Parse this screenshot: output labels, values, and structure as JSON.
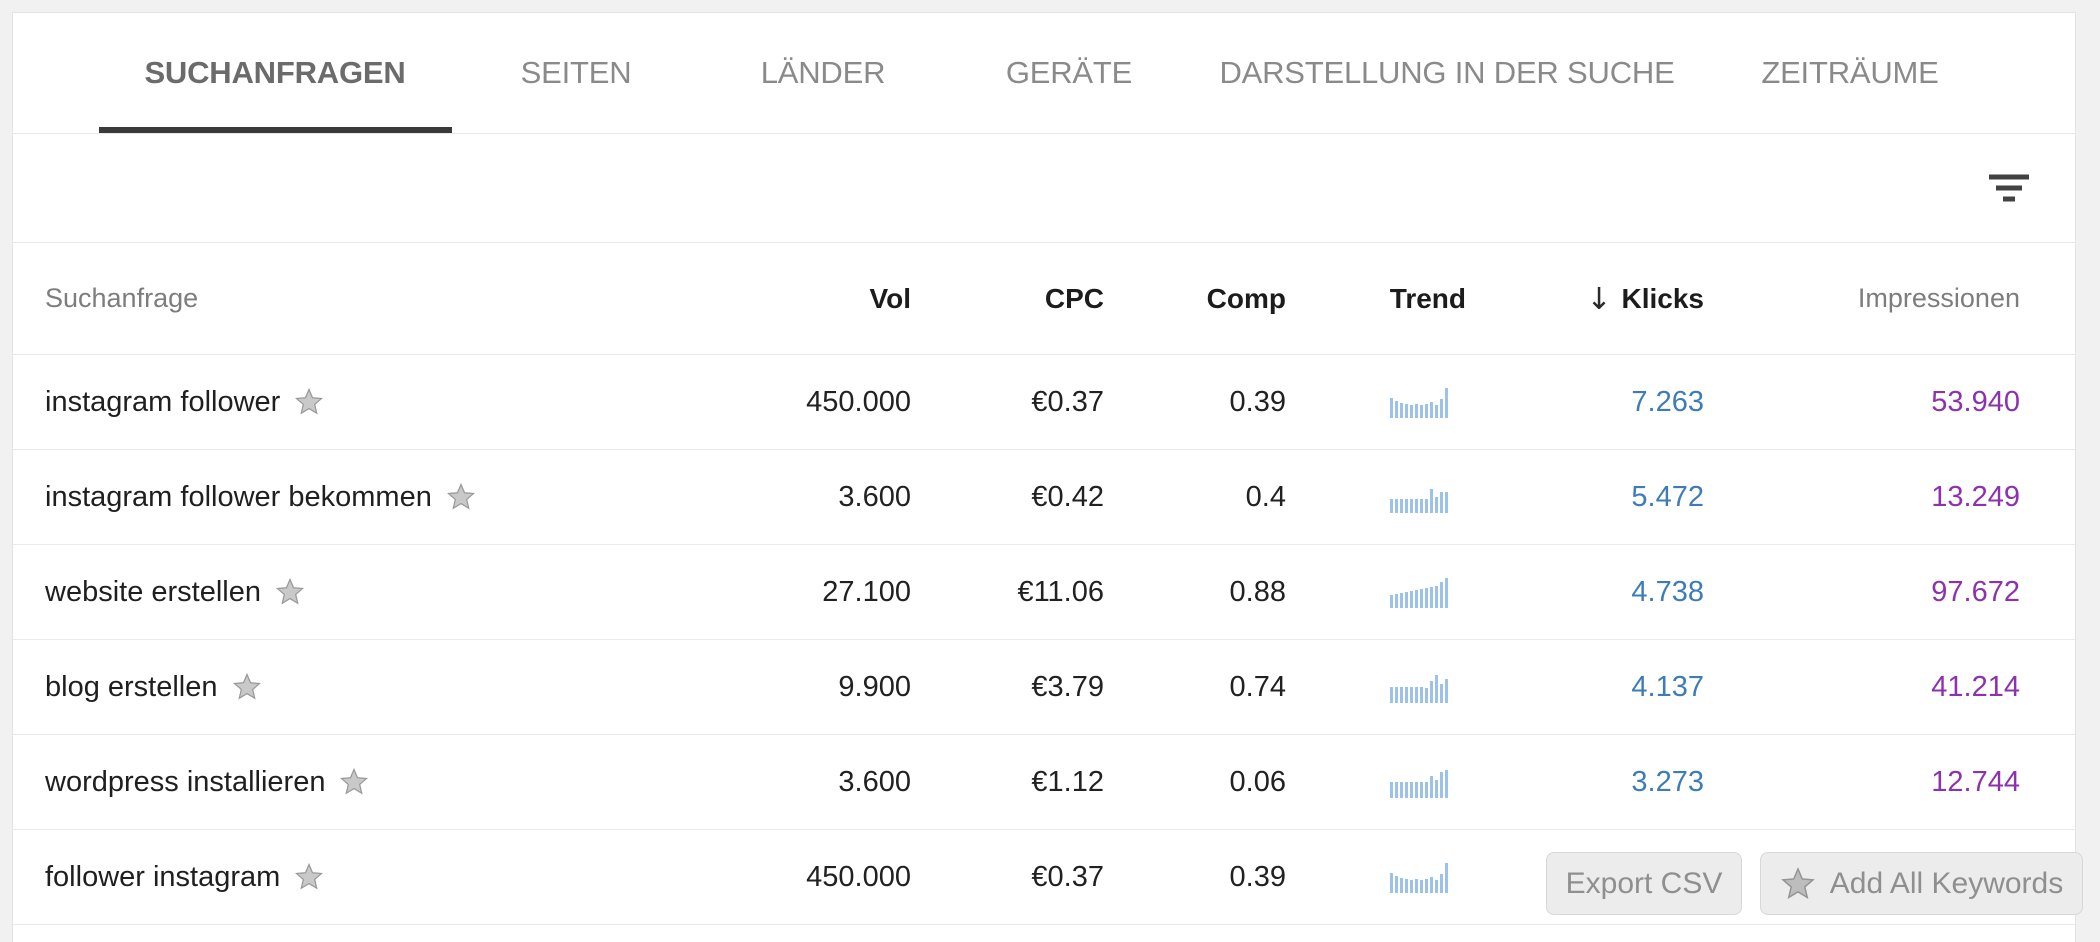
{
  "tabs": [
    {
      "label": "SUCHANFRAGEN",
      "active": true
    },
    {
      "label": "SEITEN",
      "active": false
    },
    {
      "label": "LÄNDER",
      "active": false
    },
    {
      "label": "GERÄTE",
      "active": false
    },
    {
      "label": "DARSTELLUNG IN DER SUCHE",
      "active": false
    },
    {
      "label": "ZEITRÄUME",
      "active": false
    }
  ],
  "toolbar": {
    "filter_icon": "filter-list"
  },
  "table": {
    "headers": {
      "keyword": "Suchanfrage",
      "vol": "Vol",
      "cpc": "CPC",
      "comp": "Comp",
      "trend": "Trend",
      "sort_arrow": "↓",
      "klicks": "Klicks",
      "impressions": "Impressionen"
    },
    "rows": [
      {
        "keyword": "instagram follower",
        "vol": "450.000",
        "cpc": "€0.37",
        "comp": "0.39",
        "trend": [
          20,
          17,
          15,
          14,
          13,
          14,
          13,
          14,
          16,
          13,
          19,
          30
        ],
        "klicks": "7.263",
        "impressions": "53.940"
      },
      {
        "keyword": "instagram follower bekommen",
        "vol": "3.600",
        "cpc": "€0.42",
        "comp": "0.4",
        "trend": [
          14,
          14,
          14,
          14,
          14,
          14,
          14,
          14,
          24,
          16,
          21,
          21
        ],
        "klicks": "5.472",
        "impressions": "13.249"
      },
      {
        "keyword": "website erstellen",
        "vol": "27.100",
        "cpc": "€11.06",
        "comp": "0.88",
        "trend": [
          13,
          14,
          15,
          16,
          17,
          18,
          19,
          20,
          21,
          22,
          26,
          30
        ],
        "klicks": "4.738",
        "impressions": "97.672"
      },
      {
        "keyword": "blog erstellen",
        "vol": "9.900",
        "cpc": "€3.79",
        "comp": "0.74",
        "trend": [
          16,
          16,
          16,
          16,
          16,
          16,
          16,
          15,
          22,
          28,
          19,
          24
        ],
        "klicks": "4.137",
        "impressions": "41.214"
      },
      {
        "keyword": "wordpress installieren",
        "vol": "3.600",
        "cpc": "€1.12",
        "comp": "0.06",
        "trend": [
          16,
          16,
          16,
          16,
          16,
          16,
          16,
          16,
          22,
          18,
          26,
          28
        ],
        "klicks": "3.273",
        "impressions": "12.744"
      },
      {
        "keyword": "follower instagram",
        "vol": "450.000",
        "cpc": "€0.37",
        "comp": "0.39",
        "trend": [
          20,
          17,
          15,
          14,
          13,
          14,
          13,
          14,
          16,
          13,
          19,
          30
        ],
        "klicks": "",
        "impressions": ""
      }
    ]
  },
  "buttons": {
    "export_csv": "Export CSV",
    "add_all_keywords": "Add All Keywords"
  },
  "colors": {
    "klicks_blue": "#3e7cb8",
    "impressions_purple": "#8d32ae",
    "trend_bar_blue": "#9cc2ec",
    "active_tab_underline": "#3a3a3a"
  }
}
